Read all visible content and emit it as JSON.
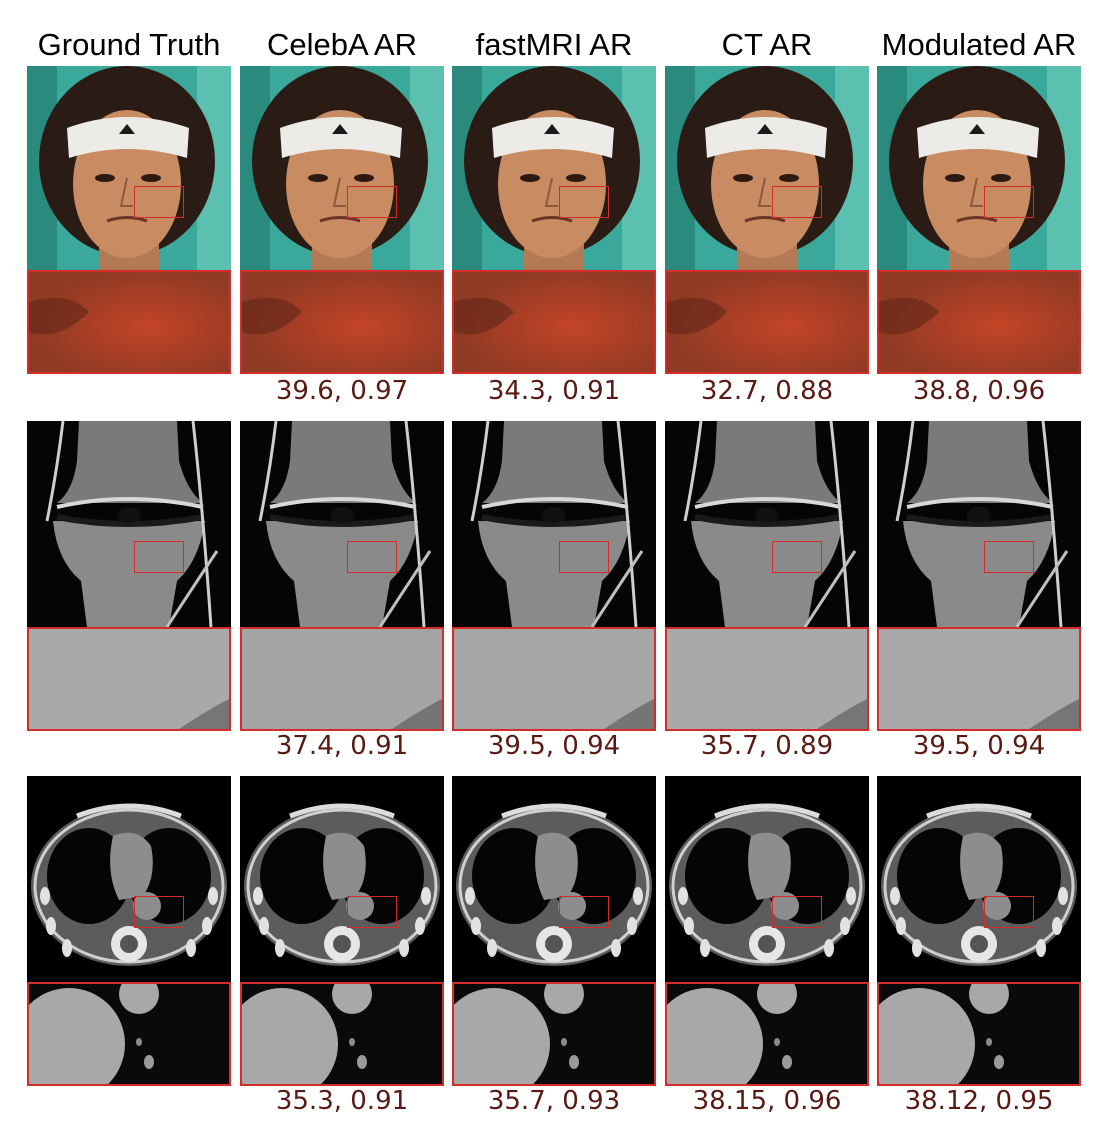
{
  "columns": [
    "Ground Truth",
    "CelebA AR",
    "fastMRI AR",
    "CT AR",
    "Modulated AR"
  ],
  "rows": [
    {
      "dataset": "face",
      "metrics": [
        "",
        "39.6, 0.97",
        "34.3, 0.91",
        "32.7, 0.88",
        "38.8, 0.96"
      ]
    },
    {
      "dataset": "knee-mri",
      "metrics": [
        "",
        "37.4, 0.91",
        "39.5, 0.94",
        "35.7, 0.89",
        "39.5, 0.94"
      ]
    },
    {
      "dataset": "chest-ct",
      "metrics": [
        "",
        "35.3, 0.91",
        "35.7, 0.93",
        "38.15, 0.96",
        "38.12, 0.95"
      ]
    }
  ],
  "colors": {
    "highlight_box": "#d42b2b",
    "metric_text": "#5a1a14",
    "face_background": "#3aa89a"
  }
}
